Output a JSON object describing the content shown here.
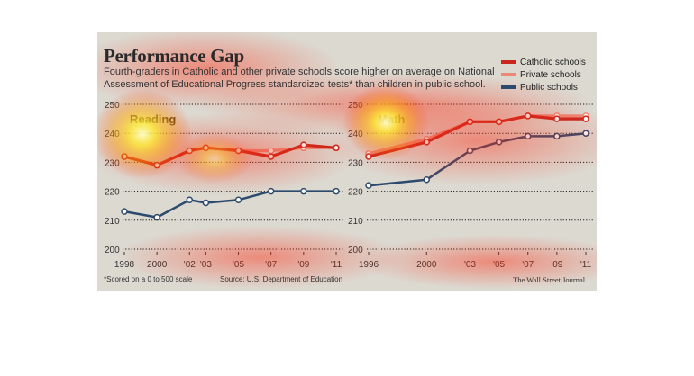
{
  "header": {
    "title": "Performance Gap",
    "subtitle": "Fourth-graders in Catholic and other private schools score higher on average on National Assessment of Educational Progress standardized tests* than children in public school."
  },
  "legend": [
    {
      "label": "Catholic schools",
      "color": "#c8281e"
    },
    {
      "label": "Private schools",
      "color": "#ec8a78"
    },
    {
      "label": "Public schools",
      "color": "#2c4a6e"
    }
  ],
  "footer": {
    "footnote": "*Scored on a 0 to 500 scale",
    "source": "Source: U.S. Department of Education",
    "publisher": "The Wall Street Journal"
  },
  "chart_data": [
    {
      "type": "line",
      "title": "Reading",
      "x": [
        "1998",
        "2000",
        "'02",
        "'03",
        "'05",
        "'07",
        "'09",
        "'11"
      ],
      "xnum": [
        1998,
        2000,
        2002,
        2003,
        2005,
        2007,
        2009,
        2011
      ],
      "ylim": [
        200,
        250
      ],
      "yticks": [
        200,
        210,
        220,
        230,
        240,
        250
      ],
      "series": [
        {
          "name": "Catholic schools",
          "color": "#c8281e",
          "values": [
            232,
            229,
            234,
            235,
            234,
            232,
            236,
            235
          ]
        },
        {
          "name": "Private schools",
          "color": "#ec8a78",
          "values": [
            232,
            229,
            234,
            235,
            234,
            234,
            235,
            235
          ]
        },
        {
          "name": "Public schools",
          "color": "#2c4a6e",
          "values": [
            213,
            211,
            217,
            216,
            217,
            220,
            220,
            220
          ]
        }
      ]
    },
    {
      "type": "line",
      "title": "Math",
      "x": [
        "1996",
        "2000",
        "'03",
        "'05",
        "'07",
        "'09",
        "'11"
      ],
      "xnum": [
        1996,
        2000,
        2003,
        2005,
        2007,
        2009,
        2011
      ],
      "ylim": [
        200,
        250
      ],
      "yticks": [
        200,
        210,
        220,
        230,
        240,
        250
      ],
      "series": [
        {
          "name": "Catholic schools",
          "color": "#c8281e",
          "values": [
            232,
            237,
            244,
            244,
            246,
            245,
            245
          ]
        },
        {
          "name": "Private schools",
          "color": "#ec8a78",
          "values": [
            233,
            238,
            244,
            244,
            246,
            246,
            246
          ]
        },
        {
          "name": "Public schools",
          "color": "#2c4a6e",
          "values": [
            222,
            224,
            234,
            237,
            239,
            239,
            240
          ]
        }
      ]
    }
  ]
}
